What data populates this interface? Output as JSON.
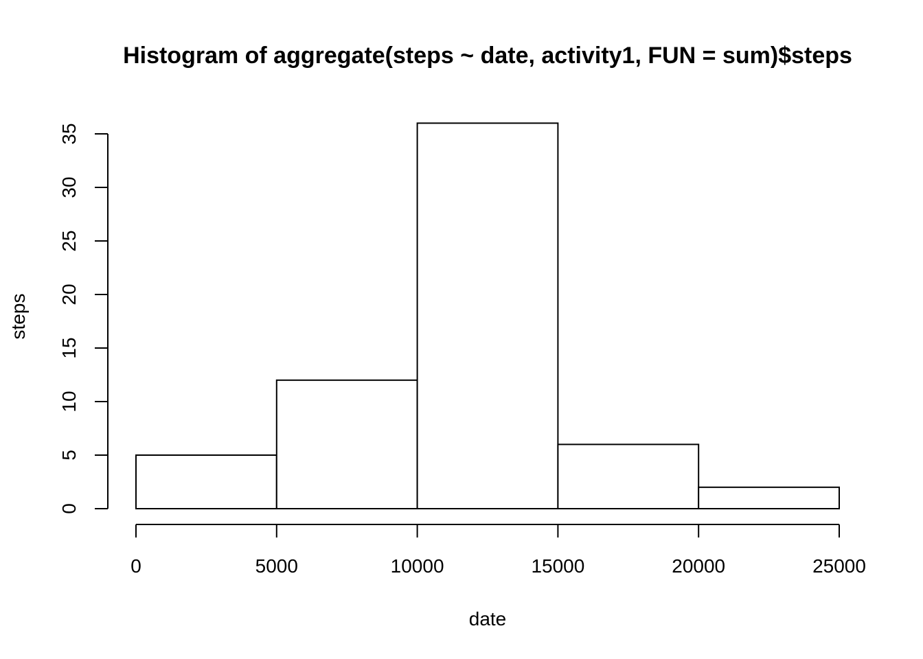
{
  "chart_data": {
    "type": "bar",
    "title": "Histogram of aggregate(steps ~ date, activity1, FUN = sum)$steps",
    "xlabel": "date",
    "ylabel": "steps",
    "bin_edges": [
      0,
      5000,
      10000,
      15000,
      20000,
      25000
    ],
    "values": [
      5,
      12,
      36,
      6,
      2
    ],
    "xlim": [
      0,
      25000
    ],
    "ylim": [
      0,
      35
    ],
    "x_ticks": [
      0,
      5000,
      10000,
      15000,
      20000,
      25000
    ],
    "x_tick_labels": [
      "0",
      "5000",
      "10000",
      "15000",
      "20000",
      "25000"
    ],
    "y_ticks": [
      0,
      5,
      10,
      15,
      20,
      25,
      30,
      35
    ],
    "y_tick_labels": [
      "0",
      "5",
      "10",
      "15",
      "20",
      "25",
      "30",
      "35"
    ],
    "grid": false,
    "legend": "none",
    "colors": {
      "bar_fill": "#ffffff",
      "bar_stroke": "#000000",
      "text": "#000000",
      "background": "#ffffff"
    }
  }
}
